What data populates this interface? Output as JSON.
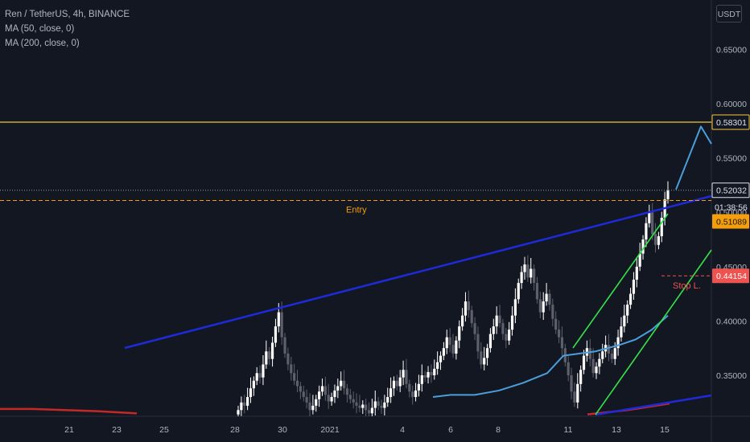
{
  "legend": {
    "symbol": "Ren / TetherUS, 4h, BINANCE",
    "ma50": "MA (50, close, 0)",
    "ma200": "MA (200, close, 0)"
  },
  "currency_label": "USDT",
  "colors": {
    "background": "#131722",
    "up_candle": "#ffffff",
    "down_candle": "#5d606b",
    "ma50": "#4a9fdb",
    "ma200": "#c62828",
    "channel_upper": "#1f2ad8",
    "channel_lower": "#1f2ad8",
    "parallel_channel": "#35e24a",
    "target_line": "#f5c542",
    "entry": "#f59e0b",
    "stop": "#ef5350",
    "projection": "#4a9fdb"
  },
  "chart_data": {
    "type": "candlestick",
    "y_axis": {
      "ticks": [
        "0.65000",
        "0.60000",
        "0.55000",
        "0.50000",
        "0.45000",
        "0.40000",
        "0.35000"
      ],
      "range": [
        0.315,
        0.7
      ]
    },
    "x_axis": {
      "ticks": [
        "21",
        "23",
        "25",
        "28",
        "30",
        "2021",
        "4",
        "6",
        "8",
        "11",
        "13",
        "15"
      ]
    },
    "price_labels": {
      "target": "0.58301",
      "current": "0.52032",
      "countdown": "01:38:56",
      "entry": "0.51089",
      "stop": "0.44154"
    },
    "annotations": {
      "entry": "Entry",
      "stop": "Stop L."
    },
    "levels": {
      "target": 0.58301,
      "current": 0.52032,
      "entry": 0.51089,
      "stop": 0.44154
    },
    "ohlc_closes": [
      0.318,
      0.325,
      0.322,
      0.33,
      0.338,
      0.345,
      0.352,
      0.348,
      0.36,
      0.372,
      0.365,
      0.38,
      0.395,
      0.408,
      0.385,
      0.37,
      0.36,
      0.352,
      0.345,
      0.34,
      0.335,
      0.33,
      0.325,
      0.318,
      0.322,
      0.328,
      0.335,
      0.34,
      0.332,
      0.326,
      0.33,
      0.336,
      0.34,
      0.345,
      0.338,
      0.332,
      0.328,
      0.325,
      0.322,
      0.32,
      0.323,
      0.318,
      0.315,
      0.32,
      0.326,
      0.322,
      0.32,
      0.325,
      0.33,
      0.338,
      0.345,
      0.34,
      0.348,
      0.355,
      0.342,
      0.335,
      0.33,
      0.336,
      0.342,
      0.35,
      0.348,
      0.353,
      0.35,
      0.356,
      0.362,
      0.368,
      0.375,
      0.385,
      0.378,
      0.37,
      0.382,
      0.395,
      0.405,
      0.418,
      0.41,
      0.398,
      0.388,
      0.372,
      0.36,
      0.366,
      0.375,
      0.388,
      0.395,
      0.405,
      0.398,
      0.388,
      0.382,
      0.392,
      0.405,
      0.42,
      0.435,
      0.445,
      0.452,
      0.44,
      0.448,
      0.435,
      0.42,
      0.408,
      0.418,
      0.425,
      0.415,
      0.402,
      0.392,
      0.385,
      0.375,
      0.362,
      0.35,
      0.335,
      0.325,
      0.342,
      0.355,
      0.368,
      0.375,
      0.365,
      0.352,
      0.358,
      0.365,
      0.372,
      0.378,
      0.37,
      0.365,
      0.375,
      0.385,
      0.395,
      0.405,
      0.415,
      0.425,
      0.438,
      0.45,
      0.462,
      0.475,
      0.49,
      0.5,
      0.48,
      0.47,
      0.478,
      0.495,
      0.512,
      0.52
    ],
    "ma50": [
      [
        700,
        0.368
      ],
      [
        740,
        0.372
      ],
      [
        770,
        0.378
      ],
      [
        790,
        0.383
      ],
      [
        810,
        0.392
      ],
      [
        830,
        0.405
      ]
    ],
    "ma200": [
      [
        0,
        0.319
      ],
      [
        40,
        0.319
      ],
      [
        80,
        0.318
      ],
      [
        120,
        0.317
      ],
      [
        170,
        0.315
      ]
    ],
    "ma200_recent": [
      [
        730,
        0.314
      ],
      [
        780,
        0.318
      ],
      [
        832,
        0.324
      ]
    ],
    "projection": [
      [
        840,
        0.521
      ],
      [
        871,
        0.579
      ],
      [
        884,
        0.563
      ]
    ]
  }
}
